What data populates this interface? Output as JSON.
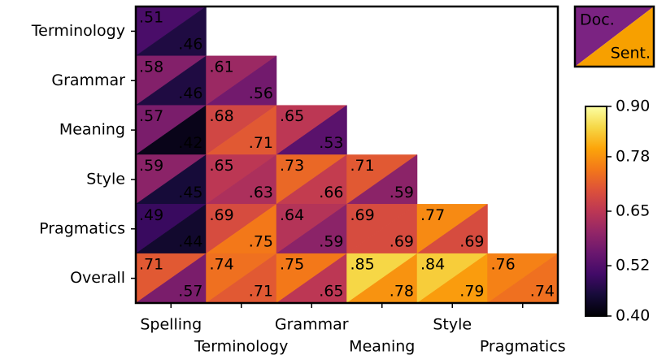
{
  "chart_data": {
    "type": "heatmap",
    "rows": [
      "Terminology",
      "Grammar",
      "Meaning",
      "Style",
      "Pragmatics",
      "Overall"
    ],
    "columns": [
      "Spelling",
      "Terminology",
      "Grammar",
      "Meaning",
      "Style",
      "Pragmatics"
    ],
    "colormap": "inferno",
    "clim": [
      0.4,
      0.9
    ],
    "cticks": [
      {
        "value": 0.4,
        "label": "0.40"
      },
      0.52,
      0.65,
      0.78,
      {
        "value": 0.9,
        "label": "0.90"
      }
    ],
    "series": [
      {
        "name": "Doc.",
        "color": "#7b2382",
        "values": [
          [
            0.51
          ],
          [
            0.58,
            0.61
          ],
          [
            0.57,
            0.68,
            0.65
          ],
          [
            0.59,
            0.65,
            0.73,
            0.71
          ],
          [
            0.49,
            0.69,
            0.64,
            0.69,
            0.77
          ],
          [
            0.71,
            0.74,
            0.75,
            0.85,
            0.84,
            0.76
          ]
        ],
        "value_labels": [
          [
            ".51"
          ],
          [
            ".58",
            ".61"
          ],
          [
            ".57",
            ".68",
            ".65"
          ],
          [
            ".59",
            ".65",
            ".73",
            ".71"
          ],
          [
            ".49",
            ".69",
            ".64",
            ".69",
            ".77"
          ],
          [
            ".71",
            ".74",
            ".75",
            ".85",
            ".84",
            ".76"
          ]
        ]
      },
      {
        "name": "Sent.",
        "color": "#f7a000",
        "values": [
          [
            0.46
          ],
          [
            0.46,
            0.56
          ],
          [
            0.42,
            0.71,
            0.53
          ],
          [
            0.45,
            0.63,
            0.66,
            0.59
          ],
          [
            0.44,
            0.75,
            0.59,
            0.69,
            0.69
          ],
          [
            0.57,
            0.71,
            0.65,
            0.78,
            0.79,
            0.74
          ]
        ],
        "value_labels": [
          [
            ".46"
          ],
          [
            ".46",
            ".56"
          ],
          [
            ".42",
            ".71",
            ".53"
          ],
          [
            ".45",
            ".63",
            ".66",
            ".59"
          ],
          [
            ".44",
            ".75",
            ".59",
            ".69",
            ".69"
          ],
          [
            ".57",
            ".71",
            ".65",
            ".78",
            ".79",
            ".74"
          ]
        ]
      }
    ]
  }
}
